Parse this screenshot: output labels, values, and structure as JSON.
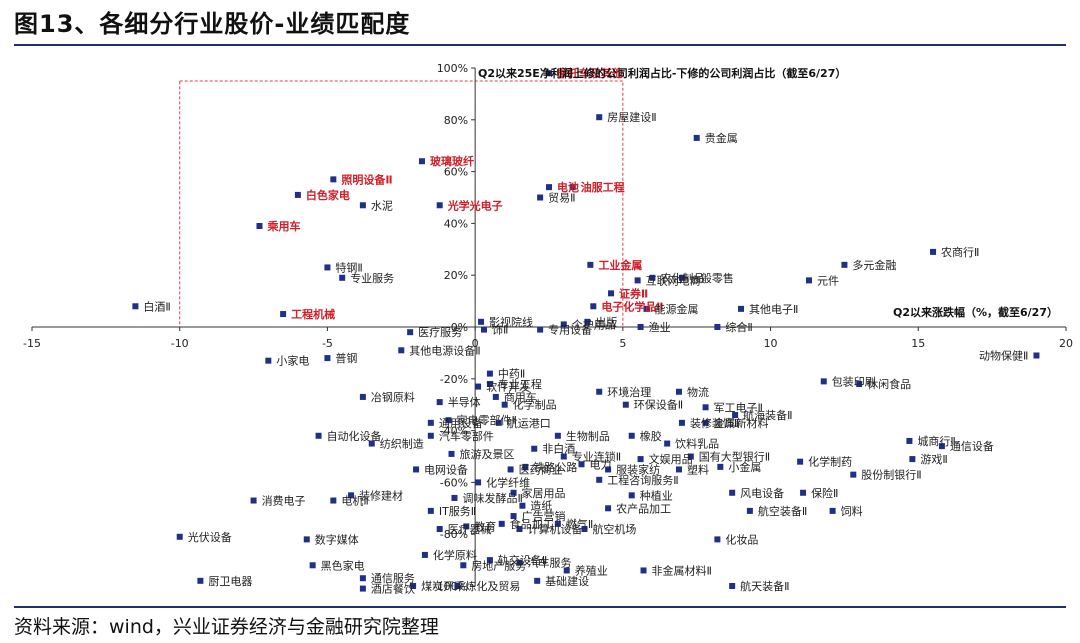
{
  "header": {
    "title": "图13、各细分行业股价-业绩匹配度"
  },
  "footer": {
    "source": "资料来源：wind，兴业证券经济与金融研究院整理"
  },
  "colors": {
    "marker": "#1f2f8a",
    "highlight": "#d0202a",
    "axis": "#333333",
    "box": "#e0404a",
    "rule": "#1f2f6f"
  },
  "chart_data": {
    "type": "scatter",
    "title": "",
    "xlabel": "Q2以来涨跌幅（%，截至6/27）",
    "ylabel": "Q2以来25E净利润上修的公司利润占比-下修的公司利润占比（截至6/27）",
    "xlim": [
      -15,
      20
    ],
    "ylim": [
      -100,
      100
    ],
    "xticks": [
      "-15",
      "-10",
      "-5",
      "0",
      "5",
      "10",
      "15",
      "20"
    ],
    "yticks": [
      "-100%",
      "-80%",
      "-60%",
      "-40%",
      "-20%",
      "0%",
      "20%",
      "40%",
      "60%",
      "80%",
      "100%"
    ],
    "grid": false,
    "highlight_region": {
      "x": [
        -10,
        5
      ],
      "y": [
        0,
        95
      ]
    },
    "points": [
      {
        "name": "摩托车及其他",
        "x": 2.5,
        "y": 98,
        "hl": true
      },
      {
        "name": "房屋建设Ⅱ",
        "x": 4.2,
        "y": 81,
        "hl": false
      },
      {
        "name": "贵金属",
        "x": 7.5,
        "y": 73,
        "hl": false
      },
      {
        "name": "玻璃玻纤",
        "x": -1.8,
        "y": 64,
        "hl": true
      },
      {
        "name": "照明设备Ⅱ",
        "x": -4.8,
        "y": 57,
        "hl": true
      },
      {
        "name": "白色家电",
        "x": -6.0,
        "y": 51,
        "hl": true
      },
      {
        "name": "水泥",
        "x": -3.8,
        "y": 47,
        "hl": false
      },
      {
        "name": "光学光电子",
        "x": -1.2,
        "y": 47,
        "hl": true
      },
      {
        "name": "电池",
        "x": 2.5,
        "y": 54,
        "hl": true
      },
      {
        "name": "油服工程",
        "x": 3.3,
        "y": 54,
        "hl": true
      },
      {
        "name": "贸易Ⅱ",
        "x": 2.2,
        "y": 50,
        "hl": false
      },
      {
        "name": "乘用车",
        "x": -7.3,
        "y": 39,
        "hl": true
      },
      {
        "name": "农商行Ⅱ",
        "x": 15.5,
        "y": 29,
        "hl": false
      },
      {
        "name": "多元金融",
        "x": 12.5,
        "y": 24,
        "hl": false
      },
      {
        "name": "工业金属",
        "x": 3.9,
        "y": 24,
        "hl": true
      },
      {
        "name": "特钢Ⅱ",
        "x": -5.0,
        "y": 23,
        "hl": false
      },
      {
        "name": "专业服务",
        "x": -4.5,
        "y": 19,
        "hl": false
      },
      {
        "name": "互联网电商",
        "x": 5.5,
        "y": 18,
        "hl": false
      },
      {
        "name": "农化制品",
        "x": 6.0,
        "y": 19,
        "hl": false
      },
      {
        "name": "一般零售",
        "x": 7.0,
        "y": 19,
        "hl": false
      },
      {
        "name": "元件",
        "x": 11.3,
        "y": 18,
        "hl": false
      },
      {
        "name": "证券Ⅱ",
        "x": 4.6,
        "y": 13,
        "hl": true
      },
      {
        "name": "其他电子Ⅱ",
        "x": 9.0,
        "y": 7,
        "hl": false
      },
      {
        "name": "白酒Ⅱ",
        "x": -11.5,
        "y": 8,
        "hl": false
      },
      {
        "name": "电子化学品Ⅱ",
        "x": 4.0,
        "y": 8,
        "hl": true
      },
      {
        "name": "能源金属",
        "x": 5.8,
        "y": 7,
        "hl": false
      },
      {
        "name": "工程机械",
        "x": -6.5,
        "y": 5,
        "hl": true
      },
      {
        "name": "影视院线",
        "x": 0.2,
        "y": 2,
        "hl": false
      },
      {
        "name": "出版",
        "x": 3.8,
        "y": 2,
        "hl": false
      },
      {
        "name": "渔业",
        "x": 5.6,
        "y": 0,
        "hl": false
      },
      {
        "name": "综合Ⅱ",
        "x": 8.2,
        "y": 0,
        "hl": false
      },
      {
        "name": "个护用品",
        "x": 3.0,
        "y": 1,
        "hl": false
      },
      {
        "name": "医疗服务",
        "x": -2.2,
        "y": -2,
        "hl": false
      },
      {
        "name": "饰Ⅱ",
        "x": 0.3,
        "y": -1,
        "hl": false
      },
      {
        "name": "专用设备",
        "x": 2.2,
        "y": -1,
        "hl": false
      },
      {
        "name": "其他电源设备Ⅱ",
        "x": -2.5,
        "y": -9,
        "hl": false
      },
      {
        "name": "普钢",
        "x": -5.0,
        "y": -12,
        "hl": false
      },
      {
        "name": "小家电",
        "x": -7.0,
        "y": -13,
        "hl": false
      },
      {
        "name": "动物保健Ⅱ",
        "x": 19.0,
        "y": -11,
        "hl": false
      },
      {
        "name": "中药Ⅱ",
        "x": 0.5,
        "y": -18,
        "hl": false
      },
      {
        "name": "专业工程",
        "x": 0.5,
        "y": -22,
        "hl": false
      },
      {
        "name": "软件开发",
        "x": 0.1,
        "y": -23,
        "hl": false
      },
      {
        "name": "冶钢原料",
        "x": -3.8,
        "y": -27,
        "hl": false
      },
      {
        "name": "半导体",
        "x": -1.2,
        "y": -29,
        "hl": false
      },
      {
        "name": "商用车",
        "x": 0.7,
        "y": -27,
        "hl": false
      },
      {
        "name": "化学制品",
        "x": 1.0,
        "y": -30,
        "hl": false
      },
      {
        "name": "环境治理",
        "x": 4.2,
        "y": -25,
        "hl": false
      },
      {
        "name": "环保设备Ⅱ",
        "x": 5.1,
        "y": -30,
        "hl": false
      },
      {
        "name": "物流",
        "x": 6.9,
        "y": -25,
        "hl": false
      },
      {
        "name": "包装印刷",
        "x": 11.8,
        "y": -21,
        "hl": false
      },
      {
        "name": "休闲食品",
        "x": 13.0,
        "y": -22,
        "hl": false
      },
      {
        "name": "军工电子Ⅱ",
        "x": 7.8,
        "y": -31,
        "hl": false
      },
      {
        "name": "航海装备Ⅱ",
        "x": 8.8,
        "y": -34,
        "hl": false
      },
      {
        "name": "通用设备",
        "x": -1.5,
        "y": -37,
        "hl": false
      },
      {
        "name": "家电零部件Ⅱ",
        "x": -0.9,
        "y": -36,
        "hl": false
      },
      {
        "name": "航运港口",
        "x": 0.8,
        "y": -37,
        "hl": false
      },
      {
        "name": "装修装饰Ⅱ",
        "x": 7.0,
        "y": -37,
        "hl": false
      },
      {
        "name": "金属新材料",
        "x": 7.8,
        "y": -37,
        "hl": false
      },
      {
        "name": "汽车零部件",
        "x": -1.5,
        "y": -42,
        "hl": false
      },
      {
        "name": "生物制品",
        "x": 2.8,
        "y": -42,
        "hl": false
      },
      {
        "name": "橡胶",
        "x": 5.3,
        "y": -42,
        "hl": false
      },
      {
        "name": "自动化设备",
        "x": -5.3,
        "y": -42,
        "hl": false
      },
      {
        "name": "纺织制造",
        "x": -3.5,
        "y": -45,
        "hl": false
      },
      {
        "name": "非白酒",
        "x": 2.0,
        "y": -47,
        "hl": false
      },
      {
        "name": "饮料乳品",
        "x": 6.5,
        "y": -45,
        "hl": false
      },
      {
        "name": "城商行Ⅱ",
        "x": 14.7,
        "y": -44,
        "hl": false
      },
      {
        "name": "通信设备",
        "x": 15.8,
        "y": -46,
        "hl": false
      },
      {
        "name": "旅游及景区",
        "x": -0.8,
        "y": -49,
        "hl": false
      },
      {
        "name": "专业连锁Ⅱ",
        "x": 3.0,
        "y": -50,
        "hl": false
      },
      {
        "name": "文娱用品",
        "x": 5.6,
        "y": -51,
        "hl": false
      },
      {
        "name": "国有大型银行Ⅱ",
        "x": 7.3,
        "y": -50,
        "hl": false
      },
      {
        "name": "化学制药",
        "x": 11.0,
        "y": -52,
        "hl": false
      },
      {
        "name": "游戏Ⅱ",
        "x": 14.8,
        "y": -51,
        "hl": false
      },
      {
        "name": "电网设备",
        "x": -2.0,
        "y": -55,
        "hl": false
      },
      {
        "name": "医药商业",
        "x": 1.2,
        "y": -55,
        "hl": false
      },
      {
        "name": "铁路公路",
        "x": 1.7,
        "y": -54,
        "hl": false
      },
      {
        "name": "电力",
        "x": 3.6,
        "y": -53,
        "hl": false
      },
      {
        "name": "服装家纺",
        "x": 4.5,
        "y": -55,
        "hl": false
      },
      {
        "name": "塑料",
        "x": 6.9,
        "y": -55,
        "hl": false
      },
      {
        "name": "小金属",
        "x": 8.3,
        "y": -54,
        "hl": false
      },
      {
        "name": "股份制银行Ⅱ",
        "x": 12.8,
        "y": -57,
        "hl": false
      },
      {
        "name": "化学纤维",
        "x": 0.1,
        "y": -60,
        "hl": false
      },
      {
        "name": "工程咨询服务Ⅱ",
        "x": 4.2,
        "y": -59,
        "hl": false
      },
      {
        "name": "消费电子",
        "x": -7.5,
        "y": -67,
        "hl": false
      },
      {
        "name": "装修建材",
        "x": -4.2,
        "y": -65,
        "hl": false
      },
      {
        "name": "电机Ⅱ",
        "x": -4.8,
        "y": -67,
        "hl": false
      },
      {
        "name": "调味发酵品Ⅱ",
        "x": -0.7,
        "y": -66,
        "hl": false
      },
      {
        "name": "家居用品",
        "x": 1.3,
        "y": -64,
        "hl": false
      },
      {
        "name": "种植业",
        "x": 5.3,
        "y": -65,
        "hl": false
      },
      {
        "name": "风电设备",
        "x": 8.7,
        "y": -64,
        "hl": false
      },
      {
        "name": "保险Ⅱ",
        "x": 11.1,
        "y": -64,
        "hl": false
      },
      {
        "name": "IT服务Ⅱ",
        "x": -1.5,
        "y": -71,
        "hl": false
      },
      {
        "name": "造纸",
        "x": 1.6,
        "y": -69,
        "hl": false
      },
      {
        "name": "农产品加工",
        "x": 4.5,
        "y": -70,
        "hl": false
      },
      {
        "name": "航空装备Ⅱ",
        "x": 9.3,
        "y": -71,
        "hl": false
      },
      {
        "name": "饲料",
        "x": 12.1,
        "y": -71,
        "hl": false
      },
      {
        "name": "广告营销",
        "x": 1.3,
        "y": -73,
        "hl": false
      },
      {
        "name": "燃气Ⅱ",
        "x": 2.8,
        "y": -76,
        "hl": false
      },
      {
        "name": "光伏设备",
        "x": -10.0,
        "y": -81,
        "hl": false
      },
      {
        "name": "数字媒体",
        "x": -5.7,
        "y": -82,
        "hl": false
      },
      {
        "name": "医疗器械",
        "x": -1.2,
        "y": -78,
        "hl": false
      },
      {
        "name": "教育",
        "x": -0.3,
        "y": -77,
        "hl": false
      },
      {
        "name": "食品加工",
        "x": 0.9,
        "y": -76,
        "hl": false
      },
      {
        "name": "计算机设备",
        "x": 1.5,
        "y": -78,
        "hl": false
      },
      {
        "name": "航空机场",
        "x": 3.7,
        "y": -78,
        "hl": false
      },
      {
        "name": "化妆品",
        "x": 8.2,
        "y": -82,
        "hl": false
      },
      {
        "name": "化学原料",
        "x": -1.7,
        "y": -88,
        "hl": false
      },
      {
        "name": "黑色家电",
        "x": -5.5,
        "y": -92,
        "hl": false
      },
      {
        "name": "轨交设备Ⅱ",
        "x": 0.5,
        "y": -90,
        "hl": false
      },
      {
        "name": "房地产服务",
        "x": -0.4,
        "y": -92,
        "hl": false
      },
      {
        "name": "汽车服务",
        "x": 1.5,
        "y": -91,
        "hl": false
      },
      {
        "name": "养殖业",
        "x": 3.1,
        "y": -94,
        "hl": false
      },
      {
        "name": "非金属材料Ⅱ",
        "x": 5.7,
        "y": -94,
        "hl": false
      },
      {
        "name": "通信服务",
        "x": -3.8,
        "y": -97,
        "hl": false
      },
      {
        "name": "厨卫电器",
        "x": -9.3,
        "y": -98,
        "hl": false
      },
      {
        "name": "酒店餐饮",
        "x": -3.8,
        "y": -101,
        "hl": false
      },
      {
        "name": "煤炭开采",
        "x": -2.1,
        "y": -100,
        "hl": false
      },
      {
        "name": "炼化及贸易",
        "x": -0.6,
        "y": -100,
        "hl": false
      },
      {
        "name": "基础建设",
        "x": 2.1,
        "y": -98,
        "hl": false
      },
      {
        "name": "航天装备Ⅱ",
        "x": 8.7,
        "y": -100,
        "hl": false
      }
    ]
  }
}
